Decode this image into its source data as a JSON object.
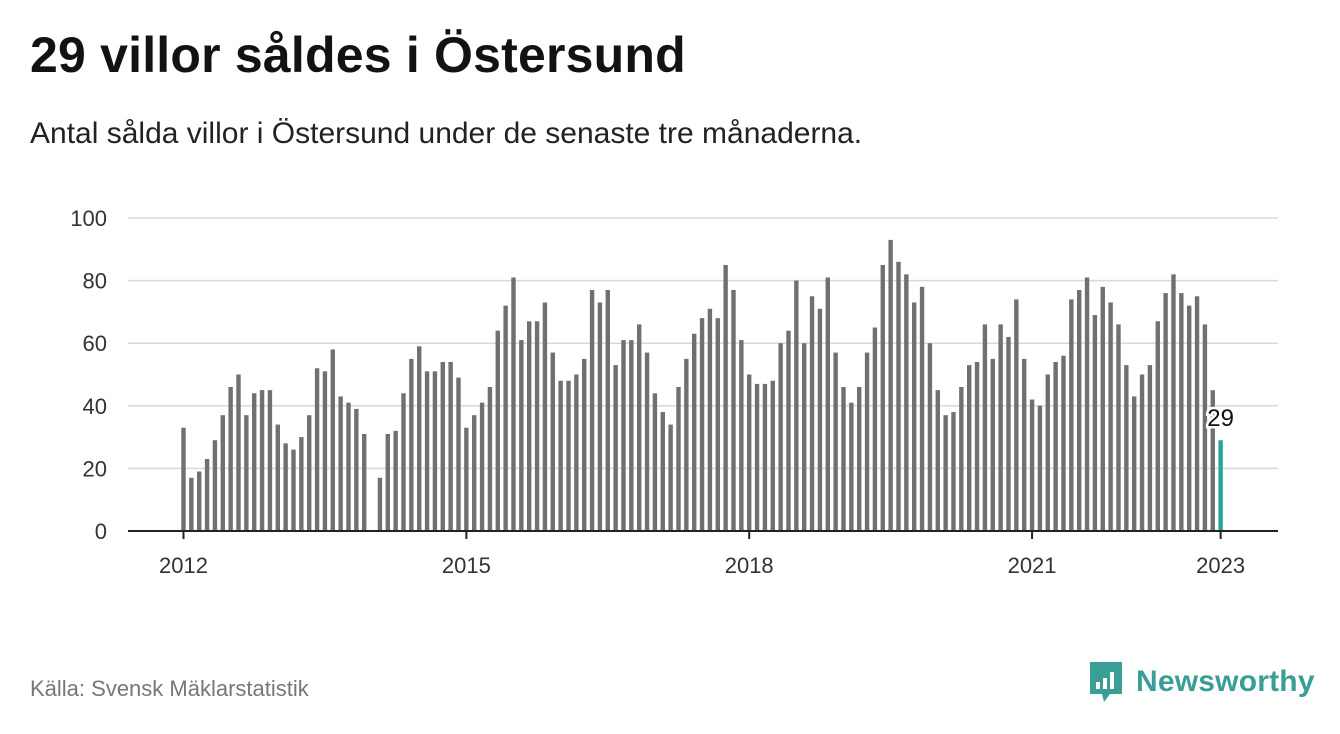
{
  "title": "29 villor såldes i Östersund",
  "subtitle": "Antal sålda villor i Östersund under de senaste tre månaderna.",
  "source": "Källa: Svensk Mäklarstatistik",
  "brand": "Newsworthy",
  "colors": {
    "bar": "#707070",
    "highlight": "#27a398",
    "grid": "#d9d9d9",
    "axis": "#222222",
    "brand": "#3a9e97"
  },
  "chart_data": {
    "type": "bar",
    "title": "29 villor såldes i Östersund",
    "subtitle": "Antal sålda villor i Östersund under de senaste tre månaderna.",
    "xlabel": "",
    "ylabel": "",
    "ylim": [
      0,
      100
    ],
    "y_ticks": [
      0,
      20,
      40,
      60,
      80,
      100
    ],
    "x_ticks": [
      "2012",
      "2015",
      "2018",
      "2021",
      "2023"
    ],
    "grid": true,
    "legend": "none",
    "start": "2012-01",
    "end": "2023-01",
    "gaps": [
      "2014-01"
    ],
    "highlight_annotation": "29",
    "values": [
      33,
      17,
      19,
      23,
      29,
      37,
      46,
      50,
      37,
      44,
      45,
      45,
      34,
      28,
      26,
      30,
      37,
      52,
      51,
      58,
      43,
      41,
      39,
      31,
      null,
      17,
      31,
      32,
      44,
      55,
      59,
      51,
      51,
      54,
      54,
      49,
      33,
      37,
      41,
      46,
      64,
      72,
      81,
      61,
      67,
      67,
      73,
      57,
      48,
      48,
      50,
      55,
      77,
      73,
      77,
      53,
      61,
      61,
      66,
      57,
      44,
      38,
      34,
      46,
      55,
      63,
      68,
      71,
      68,
      85,
      77,
      61,
      50,
      47,
      47,
      48,
      60,
      64,
      80,
      60,
      75,
      71,
      81,
      57,
      46,
      41,
      46,
      57,
      65,
      85,
      93,
      86,
      82,
      73,
      78,
      60,
      45,
      37,
      38,
      46,
      53,
      54,
      66,
      55,
      66,
      62,
      74,
      55,
      42,
      40,
      50,
      54,
      56,
      74,
      77,
      81,
      69,
      78,
      73,
      66,
      53,
      43,
      50,
      53,
      67,
      76,
      82,
      76,
      72,
      75,
      66,
      45,
      29
    ]
  }
}
